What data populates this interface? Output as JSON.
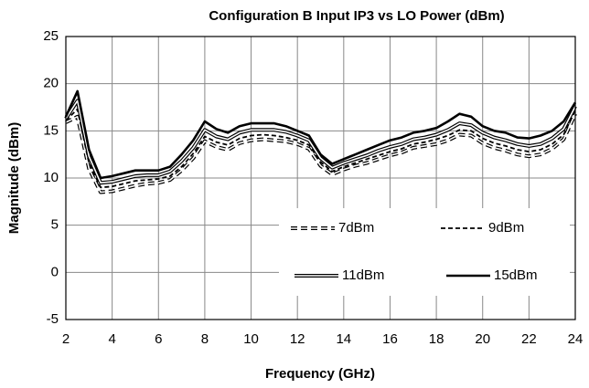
{
  "chart_data": {
    "type": "line",
    "title": "Configuration B Input IP3 vs LO Power (dBm)",
    "x_label": "Frequency (GHz)",
    "y_label": "Magnitude (dBm)",
    "x": [
      2,
      2.5,
      3,
      3.5,
      4,
      4.5,
      5,
      5.5,
      6,
      6.5,
      7,
      7.5,
      8,
      8.5,
      9,
      9.5,
      10,
      10.5,
      11,
      11.5,
      12,
      12.5,
      13,
      13.5,
      14,
      14.5,
      15,
      15.5,
      16,
      16.5,
      17,
      17.5,
      18,
      18.5,
      19,
      19.5,
      20,
      20.5,
      21,
      21.5,
      22,
      22.5,
      23,
      23.5,
      24
    ],
    "series": [
      {
        "name": "7dBm",
        "color": "#000000",
        "style": "double-dashed",
        "values": [
          15.9,
          16.5,
          11.0,
          8.5,
          8.6,
          8.9,
          9.2,
          9.4,
          9.5,
          9.8,
          10.8,
          12.1,
          13.9,
          13.3,
          13.0,
          13.7,
          14.0,
          14.1,
          14.0,
          13.9,
          13.6,
          13.1,
          11.3,
          10.4,
          10.9,
          11.3,
          11.6,
          12.0,
          12.4,
          12.7,
          13.2,
          13.4,
          13.6,
          14.0,
          14.6,
          14.5,
          13.7,
          13.2,
          12.9,
          12.5,
          12.3,
          12.5,
          13.1,
          14.1,
          16.8
        ]
      },
      {
        "name": "9dBm",
        "color": "#000000",
        "style": "dashed",
        "values": [
          16.1,
          17.3,
          11.6,
          9.0,
          9.1,
          9.4,
          9.7,
          9.8,
          9.9,
          10.2,
          11.2,
          12.6,
          14.4,
          13.8,
          13.5,
          14.2,
          14.5,
          14.6,
          14.5,
          14.3,
          14.0,
          13.5,
          11.7,
          10.7,
          11.2,
          11.6,
          12.0,
          12.4,
          12.8,
          13.1,
          13.6,
          13.8,
          14.1,
          14.5,
          15.1,
          15.0,
          14.2,
          13.7,
          13.4,
          13.0,
          12.8,
          13.0,
          13.6,
          14.6,
          17.2
        ]
      },
      {
        "name": "11dBm",
        "color": "#000000",
        "style": "double-solid",
        "values": [
          16.3,
          18.2,
          12.3,
          9.5,
          9.6,
          9.9,
          10.2,
          10.3,
          10.3,
          10.7,
          11.8,
          13.2,
          15.1,
          14.4,
          14.1,
          14.8,
          15.1,
          15.1,
          15.1,
          14.9,
          14.5,
          14.0,
          12.1,
          11.1,
          11.6,
          12.0,
          12.4,
          12.9,
          13.3,
          13.6,
          14.1,
          14.3,
          14.6,
          15.1,
          15.8,
          15.6,
          14.8,
          14.3,
          14.0,
          13.6,
          13.4,
          13.6,
          14.2,
          15.2,
          17.6
        ]
      },
      {
        "name": "15dBm",
        "color": "#000000",
        "style": "thick",
        "values": [
          16.5,
          19.2,
          13.0,
          10.0,
          10.2,
          10.5,
          10.8,
          10.8,
          10.8,
          11.2,
          12.5,
          14.0,
          16.0,
          15.2,
          14.8,
          15.5,
          15.8,
          15.8,
          15.8,
          15.5,
          15.0,
          14.5,
          12.5,
          11.5,
          12.0,
          12.5,
          13.0,
          13.5,
          14.0,
          14.3,
          14.8,
          15.0,
          15.3,
          16.0,
          16.8,
          16.5,
          15.5,
          15.0,
          14.8,
          14.3,
          14.2,
          14.5,
          15.0,
          16.0,
          18.0
        ]
      }
    ],
    "xlim": [
      2,
      24
    ],
    "xticks": [
      2,
      4,
      6,
      8,
      10,
      12,
      14,
      16,
      18,
      20,
      22,
      24
    ],
    "ylim": [
      -5,
      25
    ],
    "yticks": [
      -5,
      0,
      5,
      10,
      15,
      20,
      25
    ],
    "grid": true,
    "legend": "lower right"
  }
}
